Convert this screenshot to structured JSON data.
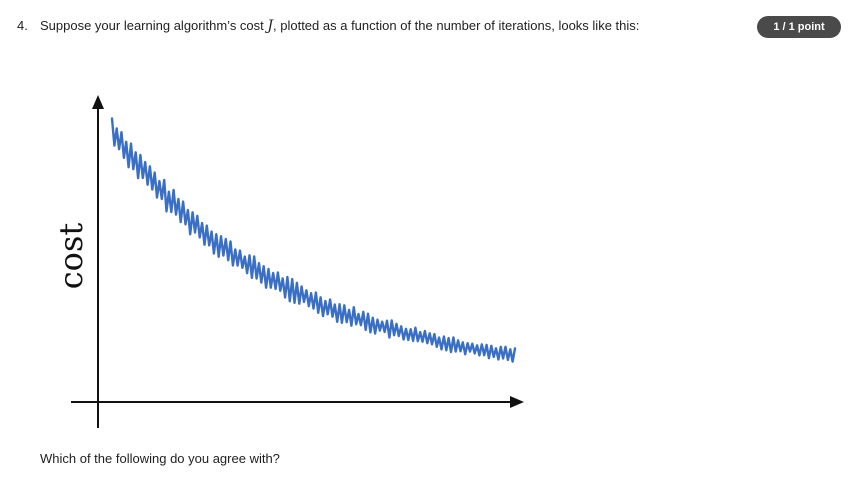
{
  "question": {
    "number": "4.",
    "text_before": "Suppose your learning algorithm’s cost ",
    "math_symbol": "J",
    "text_after": ", plotted as a function of the number of iterations, looks like this:",
    "points": "1 / 1 point",
    "prompt": "Which of the following do you agree with?"
  },
  "chart_data": {
    "type": "line",
    "ylabel": "cost",
    "xlabel": "",
    "title": "",
    "trend": "noisy-decreasing",
    "line_color": "#3a6fc4",
    "axis_color": "#111111"
  }
}
